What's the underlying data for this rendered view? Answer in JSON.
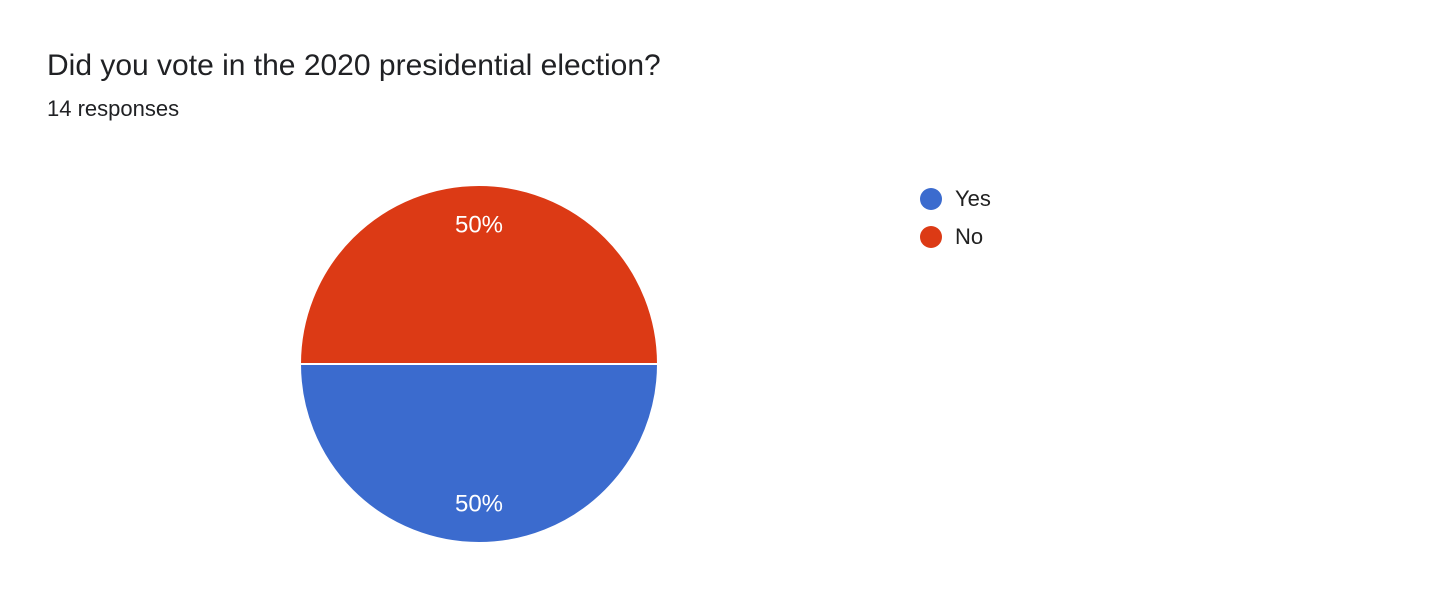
{
  "header": {
    "title": "Did you vote in the 2020 presidential election?",
    "subtitle": "14 responses"
  },
  "chart_data": {
    "type": "pie",
    "title": "Did you vote in the 2020 presidential election?",
    "subtitle": "14 responses",
    "total_responses": 14,
    "legend_position": "right",
    "start_angle_deg": 0,
    "slice_border_color": "#ffffff",
    "label_color": "#ffffff",
    "slices": [
      {
        "label": "Yes",
        "percent": 50,
        "display": "50%",
        "color": "#3b6bce"
      },
      {
        "label": "No",
        "percent": 50,
        "display": "50%",
        "color": "#dc3a15"
      }
    ]
  }
}
